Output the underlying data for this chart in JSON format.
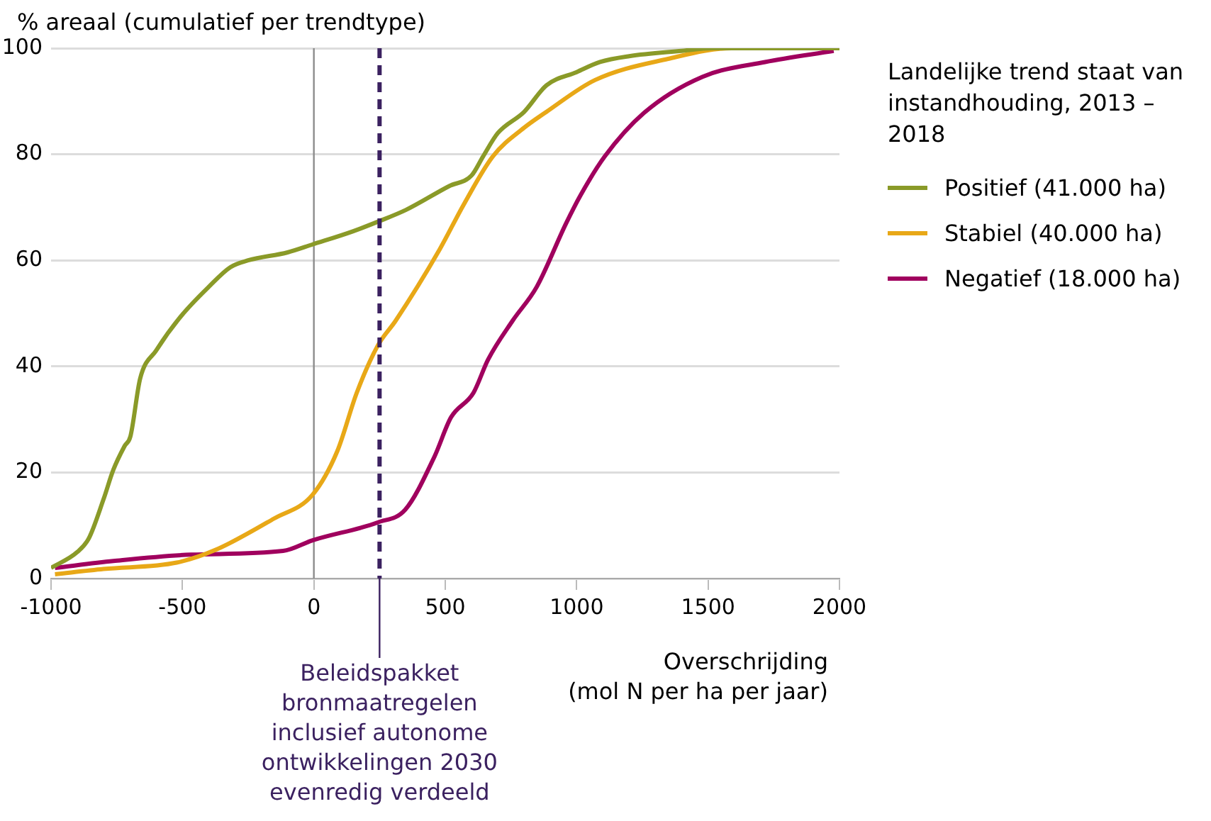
{
  "chart_data": {
    "type": "line",
    "ylabel": "% areaal (cumulatief per trendtype)",
    "xlabel": "Overschrijding\n(mol N per ha per jaar)",
    "legend_title": "Landelijke trend staat van instandhouding, 2013 – 2018",
    "legend": "top right",
    "grid": "y",
    "marker": "none",
    "line_style": "solid",
    "xlim": [
      -1000,
      2000
    ],
    "xticks": [
      -1000,
      -500,
      0,
      500,
      1000,
      1500,
      2000
    ],
    "ylim": [
      0,
      100
    ],
    "yticks": [
      0,
      20,
      40,
      60,
      80,
      100
    ],
    "series": [
      {
        "name": "Positief (41.000 ha)",
        "color": "#8a9a28",
        "x": [
          -1000,
          -900,
          -856,
          -800,
          -763,
          -720,
          -698,
          -661,
          -600,
          -505,
          -400,
          -318,
          -250,
          -100,
          -5,
          150,
          244,
          350,
          515,
          600,
          644,
          700,
          800,
          885,
          1000,
          1089,
          1200,
          1400,
          1515,
          2000
        ],
        "values": [
          2,
          5,
          7.6,
          15,
          20.5,
          25,
          26.8,
          37.7,
          43,
          49.5,
          55,
          58.7,
          60,
          61.5,
          63,
          65.5,
          67.3,
          69.5,
          74,
          76,
          79.6,
          84,
          88,
          93,
          95.5,
          97.4,
          98.5,
          99.5,
          100,
          100
        ]
      },
      {
        "name": "Stabiel (40.000 ha)",
        "color": "#e8a817",
        "x": [
          -985,
          -800,
          -522,
          -374,
          -152,
          -5,
          89,
          163,
          244,
          311,
          478,
          570,
          681,
          800,
          885,
          1070,
          1348,
          1589,
          2000
        ],
        "values": [
          0.8,
          1.8,
          3,
          5.4,
          11.3,
          15.8,
          24,
          35,
          44,
          48.6,
          62,
          70.5,
          79.6,
          85,
          88,
          94,
          98,
          100,
          100
        ]
      },
      {
        "name": "Negatief (18.000 ha)",
        "color": "#a0005e",
        "x": [
          -985,
          -763,
          -467,
          -117,
          -5,
          244,
          348,
          459,
          522,
          607,
          663,
          756,
          848,
          959,
          1015,
          1107,
          1256,
          1478,
          1717,
          1978
        ],
        "values": [
          2,
          3.3,
          4.5,
          5.2,
          7.2,
          10.6,
          13,
          23,
          30.4,
          35,
          41.3,
          48.6,
          55,
          66.9,
          72.3,
          79.6,
          87.8,
          94.6,
          97.4,
          99.5
        ]
      }
    ],
    "ref_lines": [
      {
        "axis": "x",
        "value": 0,
        "color": "#8c8c8c",
        "line_style": "solid"
      },
      {
        "axis": "x",
        "value": 250,
        "color": "#3b2160",
        "line_style": "dashed",
        "label": "Beleidspakket bronmaatregelen inclusief autonome ontwikkelingen 2030 evenredig verdeeld"
      }
    ]
  }
}
